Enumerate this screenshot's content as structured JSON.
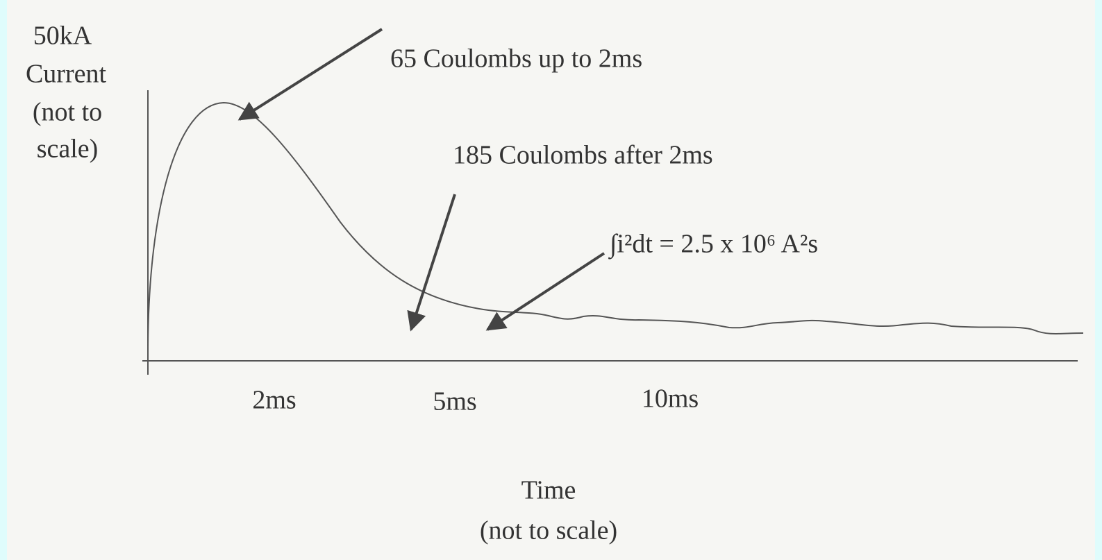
{
  "y_axis": {
    "lines": [
      "50kA",
      "Current",
      "(not to",
      "scale)"
    ]
  },
  "x_axis": {
    "ticks": [
      "2ms",
      "5ms",
      "10ms"
    ],
    "title_lines": [
      "Time",
      "(not to scale)"
    ]
  },
  "annotations": [
    "65 Coulombs up to 2ms",
    "185 Coulombs after 2ms",
    "∫i²dt = 2.5 x 10⁶ A²s"
  ]
}
